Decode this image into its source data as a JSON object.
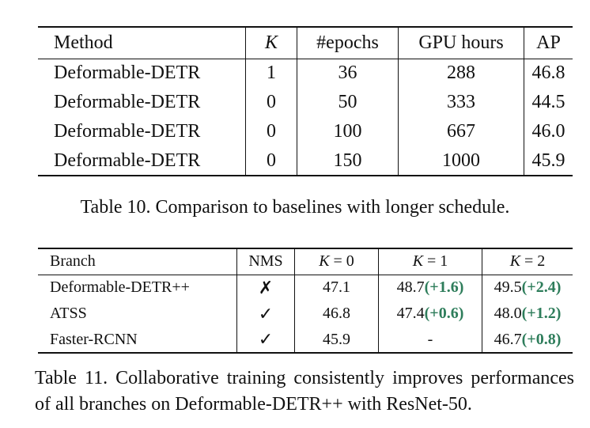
{
  "table10": {
    "headers": [
      "Method",
      "K",
      "#epochs",
      "GPU hours",
      "AP"
    ],
    "rows": [
      [
        "Deformable-DETR",
        "1",
        "36",
        "288",
        "46.8"
      ],
      [
        "Deformable-DETR",
        "0",
        "50",
        "333",
        "44.5"
      ],
      [
        "Deformable-DETR",
        "0",
        "100",
        "667",
        "46.0"
      ],
      [
        "Deformable-DETR",
        "0",
        "150",
        "1000",
        "45.9"
      ]
    ],
    "caption": "Table 10. Comparison to baselines with longer schedule."
  },
  "table11": {
    "headers": {
      "branch": "Branch",
      "nms": "NMS",
      "k0": {
        "var": "K",
        "rest": " = 0"
      },
      "k1": {
        "var": "K",
        "rest": " = 1"
      },
      "k2": {
        "var": "K",
        "rest": " = 2"
      }
    },
    "rows": [
      {
        "branch": "Deformable-DETR++",
        "nms": "✗",
        "k0": "47.1",
        "k1": {
          "base": "48.7",
          "gain": "(+1.6)"
        },
        "k2": {
          "base": "49.5",
          "gain": "(+2.4)"
        }
      },
      {
        "branch": "ATSS",
        "nms": "✓",
        "k0": "46.8",
        "k1": {
          "base": "47.4",
          "gain": "(+0.6)"
        },
        "k2": {
          "base": "48.0",
          "gain": "(+1.2)"
        }
      },
      {
        "branch": "Faster-RCNN",
        "nms": "✓",
        "k0": "45.9",
        "k1": {
          "base": "-",
          "gain": ""
        },
        "k2": {
          "base": "46.7",
          "gain": "(+0.8)"
        }
      }
    ],
    "caption": "Table 11.  Collaborative training consistently improves performances of all branches on Deformable-DETR++ with ResNet-50."
  },
  "colors": {
    "gain": "#2e7d5b",
    "text": "#111111"
  }
}
